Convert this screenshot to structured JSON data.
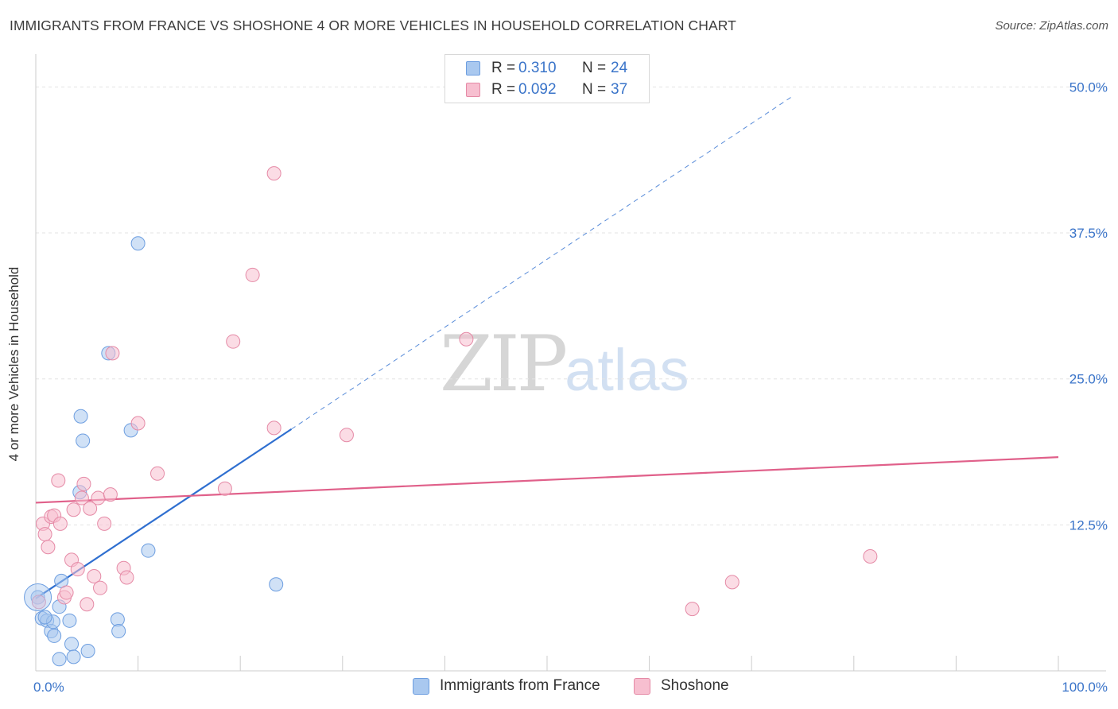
{
  "title": "IMMIGRANTS FROM FRANCE VS SHOSHONE 4 OR MORE VEHICLES IN HOUSEHOLD CORRELATION CHART",
  "source": "Source: ZipAtlas.com",
  "watermark": {
    "zip": "ZIP",
    "atlas": "atlas"
  },
  "legend": {
    "rows": [
      {
        "r_label": "R =",
        "r_value": "0.310",
        "n_label": "N =",
        "n_value": "24",
        "color": "#a9c8ef",
        "border": "#6d9ee0"
      },
      {
        "r_label": "R =",
        "r_value": "0.092",
        "n_label": "N =",
        "n_value": "37",
        "color": "#f7bfd0",
        "border": "#e58aa6"
      }
    ]
  },
  "bottom_legend": [
    {
      "label": "Immigrants from France",
      "color": "#a9c8ef",
      "border": "#6d9ee0"
    },
    {
      "label": "Shoshone",
      "color": "#f7bfd0",
      "border": "#e58aa6"
    }
  ],
  "chart_data": {
    "type": "scatter",
    "ylabel": "4 or more Vehicles in Household",
    "xlim": [
      0,
      100
    ],
    "ylim": [
      0,
      52
    ],
    "x_tick_labels": [
      {
        "x": 0,
        "label": "0.0%"
      },
      {
        "x": 100,
        "label": "100.0%"
      }
    ],
    "y_tick_labels": [
      {
        "y": 12.5,
        "label": "12.5%"
      },
      {
        "y": 25.0,
        "label": "25.0%"
      },
      {
        "y": 37.5,
        "label": "37.5%"
      },
      {
        "y": 50.0,
        "label": "50.0%"
      }
    ],
    "grid": true,
    "series": [
      {
        "name": "Immigrants from France",
        "color": "#a9c8ef",
        "stroke": "#6d9ee0",
        "trend_color": "#2f6fd0",
        "trend": {
          "x0": 0,
          "y0": 6.2,
          "x1": 25,
          "y1": 20.7,
          "dash_to_x": 74,
          "dash_to_y": 49.2
        },
        "points": [
          [
            0.2,
            6.3
          ],
          [
            0.6,
            4.5
          ],
          [
            1.1,
            4.3
          ],
          [
            1.5,
            3.4
          ],
          [
            1.7,
            4.2
          ],
          [
            1.8,
            3.0
          ],
          [
            2.3,
            1.0
          ],
          [
            2.5,
            7.7
          ],
          [
            2.3,
            5.5
          ],
          [
            3.3,
            4.3
          ],
          [
            3.5,
            2.3
          ],
          [
            3.7,
            1.2
          ],
          [
            4.3,
            15.3
          ],
          [
            4.4,
            21.8
          ],
          [
            4.6,
            19.7
          ],
          [
            5.1,
            1.7
          ],
          [
            7.1,
            27.2
          ],
          [
            8.0,
            4.4
          ],
          [
            8.1,
            3.4
          ],
          [
            9.3,
            20.6
          ],
          [
            10.0,
            36.6
          ],
          [
            11.0,
            10.3
          ],
          [
            23.5,
            7.4
          ],
          [
            0.9,
            4.6
          ]
        ]
      },
      {
        "name": "Shoshone",
        "color": "#f7bfd0",
        "stroke": "#e58aa6",
        "trend_color": "#e0608a",
        "trend": {
          "x0": 0,
          "y0": 14.4,
          "x1": 100,
          "y1": 18.3
        },
        "points": [
          [
            0.3,
            5.9
          ],
          [
            0.7,
            12.6
          ],
          [
            0.9,
            11.7
          ],
          [
            1.2,
            10.6
          ],
          [
            1.5,
            13.2
          ],
          [
            1.8,
            13.3
          ],
          [
            2.2,
            16.3
          ],
          [
            2.4,
            12.6
          ],
          [
            2.8,
            6.3
          ],
          [
            3.5,
            9.5
          ],
          [
            3.7,
            13.8
          ],
          [
            4.1,
            8.7
          ],
          [
            4.5,
            14.8
          ],
          [
            4.7,
            16.0
          ],
          [
            5.0,
            5.7
          ],
          [
            5.3,
            13.9
          ],
          [
            5.7,
            8.1
          ],
          [
            6.1,
            14.8
          ],
          [
            6.3,
            7.1
          ],
          [
            6.7,
            12.6
          ],
          [
            7.3,
            15.1
          ],
          [
            7.5,
            27.2
          ],
          [
            8.6,
            8.8
          ],
          [
            8.9,
            8.0
          ],
          [
            10.0,
            21.2
          ],
          [
            11.9,
            16.9
          ],
          [
            18.5,
            15.6
          ],
          [
            19.3,
            28.2
          ],
          [
            21.2,
            33.9
          ],
          [
            23.3,
            20.8
          ],
          [
            23.3,
            42.6
          ],
          [
            30.4,
            20.2
          ],
          [
            42.1,
            28.4
          ],
          [
            64.2,
            5.3
          ],
          [
            68.1,
            7.6
          ],
          [
            81.6,
            9.8
          ],
          [
            3.0,
            6.7
          ]
        ]
      }
    ]
  }
}
